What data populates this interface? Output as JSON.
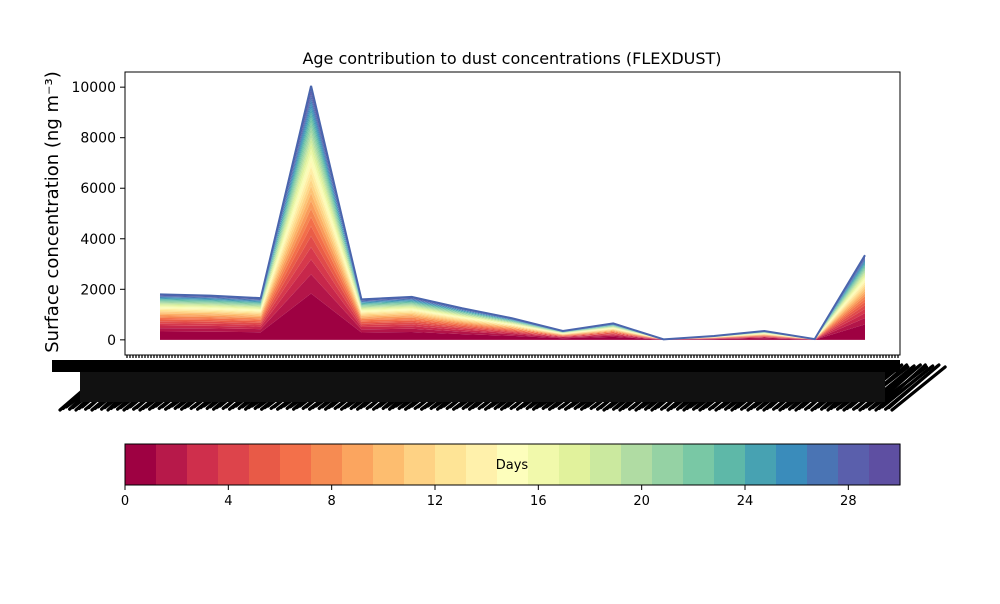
{
  "chart_data": {
    "type": "area",
    "title": "Age contribution to dust concentrations (FLEXDUST)",
    "ylabel": "Surface concentration (ng m⁻³)",
    "xlabel": "",
    "ylim": [
      -600,
      10600
    ],
    "yticks": [
      0,
      2000,
      4000,
      6000,
      8000,
      10000
    ],
    "x_tick_labels_legible": false,
    "series_layers": 30,
    "x_index": [
      0,
      1,
      2,
      3,
      4,
      5,
      6,
      7,
      8,
      9,
      10,
      11,
      12,
      13,
      14
    ],
    "totals": [
      1800,
      1750,
      1650,
      10050,
      1600,
      1700,
      1250,
      850,
      350,
      650,
      20,
      150,
      350,
      30,
      3350
    ],
    "colorbar": {
      "label": "Days",
      "min": 0,
      "max": 30,
      "ticks": [
        0,
        4,
        8,
        12,
        16,
        20,
        24,
        28
      ],
      "colors": [
        "#9e0142",
        "#b7194a",
        "#cf2f4c",
        "#dd444b",
        "#e85a47",
        "#f3704a",
        "#f68b52",
        "#fba55f",
        "#fdbd6f",
        "#fed284",
        "#fee496",
        "#fff1ab",
        "#fdfebc",
        "#f1f9ab",
        "#e1f29c",
        "#cbe99f",
        "#b0dca3",
        "#95d2a4",
        "#79c8a5",
        "#5eb8a8",
        "#47a2b2",
        "#3a8cbb",
        "#4a74b4",
        "#5a5fac",
        "#5e4fa2"
      ]
    }
  }
}
